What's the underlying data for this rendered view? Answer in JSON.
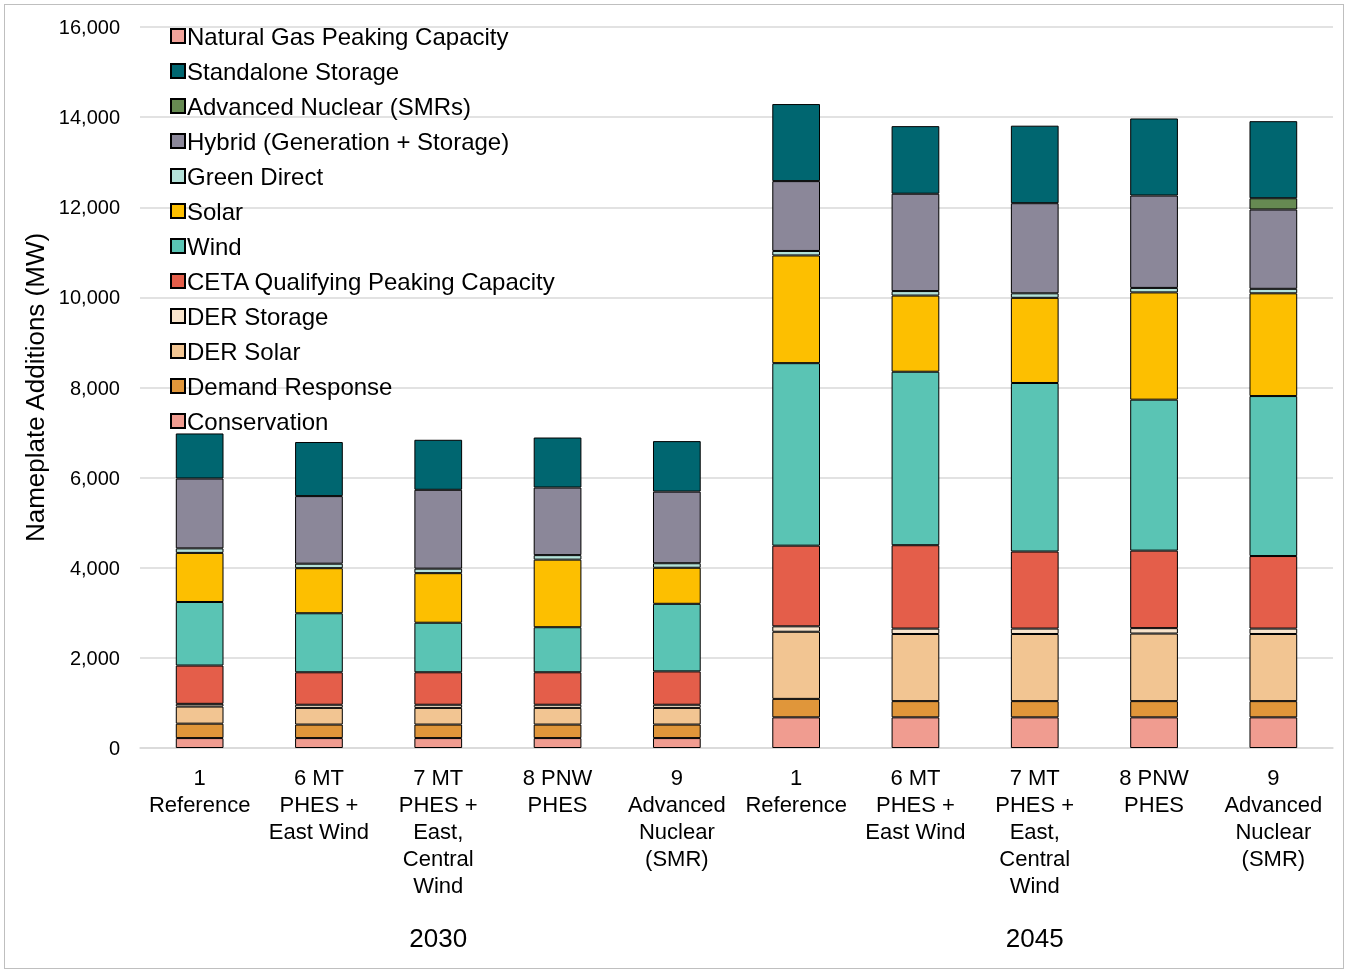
{
  "chart_data": {
    "type": "bar",
    "stacked": true,
    "ylabel": "Nameplate Additions (MW)",
    "categories": [
      "1\nReference",
      "6 MT\nPHES +\nEast Wind",
      "7 MT\nPHES +\nEast,\nCentral\nWind",
      "8 PNW\nPHES",
      "9\nAdvanced\nNuclear\n(SMR)",
      "1\nReference",
      "6 MT\nPHES +\nEast Wind",
      "7 MT\nPHES +\nEast,\nCentral\nWind",
      "8 PNW\nPHES",
      "9\nAdvanced\nNuclear\n(SMR)"
    ],
    "series": [
      {
        "name": "Conservation",
        "color": "#f09c90",
        "values": [
          220,
          220,
          220,
          220,
          220,
          680,
          680,
          680,
          680,
          680
        ]
      },
      {
        "name": "Demand Response",
        "color": "#e0963a",
        "values": [
          320,
          300,
          300,
          300,
          300,
          410,
          360,
          360,
          360,
          360
        ]
      },
      {
        "name": "DER Solar",
        "color": "#f2c592",
        "values": [
          380,
          370,
          370,
          370,
          370,
          1490,
          1490,
          1490,
          1500,
          1490
        ]
      },
      {
        "name": "DER Storage",
        "color": "#f8e4cc",
        "values": [
          60,
          70,
          70,
          70,
          70,
          120,
          120,
          120,
          120,
          120
        ]
      },
      {
        "name": "CETA Qualifying Peaking Capacity",
        "color": "#e45e4a",
        "values": [
          850,
          720,
          720,
          720,
          740,
          1790,
          1850,
          1710,
          1720,
          1610
        ]
      },
      {
        "name": "Wind",
        "color": "#5ac4b4",
        "values": [
          1410,
          1310,
          1100,
          1000,
          1500,
          4050,
          3850,
          3740,
          3350,
          3550
        ]
      },
      {
        "name": "Solar",
        "color": "#fdbf00",
        "values": [
          1090,
          1000,
          1100,
          1500,
          800,
          2390,
          1690,
          1890,
          2380,
          2280
        ]
      },
      {
        "name": "Green Direct",
        "color": "#b4e2d9",
        "values": [
          100,
          100,
          100,
          100,
          100,
          100,
          100,
          100,
          100,
          100
        ]
      },
      {
        "name": "Hybrid (Generation + Storage)",
        "color": "#8b8799",
        "values": [
          1550,
          1500,
          1750,
          1500,
          1590,
          1550,
          2160,
          2000,
          2050,
          1760
        ]
      },
      {
        "name": "Advanced Nuclear (SMRs)",
        "color": "#668a52",
        "values": [
          0,
          0,
          0,
          0,
          0,
          0,
          0,
          0,
          0,
          250
        ]
      },
      {
        "name": "Standalone Storage",
        "color": "#006670",
        "values": [
          1000,
          1200,
          1110,
          1110,
          1120,
          1710,
          1500,
          1720,
          1710,
          1710
        ]
      },
      {
        "name": "Natural Gas Peaking Capacity",
        "color": "#f2a39a",
        "values": [
          0,
          0,
          0,
          0,
          0,
          0,
          0,
          0,
          0,
          0
        ]
      }
    ],
    "ylim": [
      0,
      16000
    ],
    "yticks": [
      {
        "value": 0,
        "label": "0"
      },
      {
        "value": 2000,
        "label": "2,000"
      },
      {
        "value": 4000,
        "label": "4,000"
      },
      {
        "value": 6000,
        "label": "6,000"
      },
      {
        "value": 8000,
        "label": "8,000"
      },
      {
        "value": 10000,
        "label": "10,000"
      },
      {
        "value": 12000,
        "label": "12,000"
      },
      {
        "value": 14000,
        "label": "14,000"
      },
      {
        "value": 16000,
        "label": "16,000"
      }
    ],
    "grid": "y",
    "legend": "top left",
    "annotations": [
      "2030",
      "2045"
    ]
  }
}
